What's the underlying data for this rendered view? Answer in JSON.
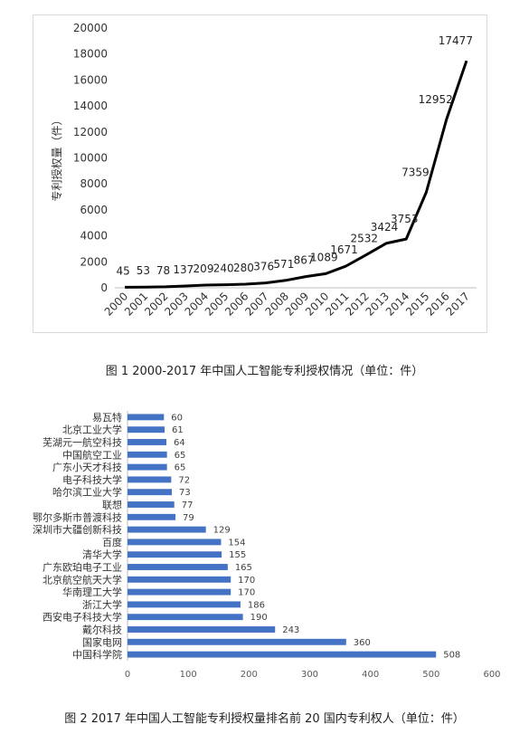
{
  "chart_data": [
    {
      "type": "line",
      "x": [
        "2000",
        "2001",
        "2002",
        "2003",
        "2004",
        "2005",
        "2006",
        "2007",
        "2008",
        "2009",
        "2010",
        "2011",
        "2012",
        "2013",
        "2014",
        "2015",
        "2016",
        "2017"
      ],
      "series": [
        {
          "values": [
            45,
            53,
            78,
            137,
            209,
            240,
            280,
            376,
            571,
            867,
            1089,
            1671,
            2532,
            3424,
            3753,
            7359,
            12952,
            17477
          ]
        }
      ],
      "ylabel": "专利授权量（件）",
      "ylim": [
        0,
        20000
      ],
      "yticks": [
        0,
        2000,
        4000,
        6000,
        8000,
        10000,
        12000,
        14000,
        16000,
        18000,
        20000
      ],
      "grid": false,
      "line_color": "#000000"
    },
    {
      "type": "bar",
      "orientation": "horizontal",
      "categories": [
        "易瓦特",
        "北京工业大学",
        "芜湖元一航空科技",
        "中国航空工业",
        "广东小天才科技",
        "电子科技大学",
        "哈尔滨工业大学",
        "联想",
        "鄂尔多斯市普渡科技",
        "深圳市大疆创新科技",
        "百度",
        "清华大学",
        "广东欧珀电子工业",
        "北京航空航天大学",
        "华南理工大学",
        "浙江大学",
        "西安电子科技大学",
        "戴尔科技",
        "国家电网",
        "中国科学院"
      ],
      "values": [
        60,
        61,
        64,
        65,
        65,
        72,
        73,
        77,
        79,
        129,
        154,
        155,
        165,
        170,
        170,
        186,
        190,
        243,
        360,
        508
      ],
      "xlim": [
        0,
        600
      ],
      "xticks": [
        0,
        100,
        200,
        300,
        400,
        500,
        600
      ],
      "grid": false,
      "bar_color": "#4472c4"
    }
  ],
  "captions": {
    "fig1": "图 1 2000-2017 年中国人工智能专利授权情况（单位：件）",
    "fig2": "图 2 2017 年中国人工智能专利授权量排名前 20 国内专利权人（单位：件）"
  }
}
